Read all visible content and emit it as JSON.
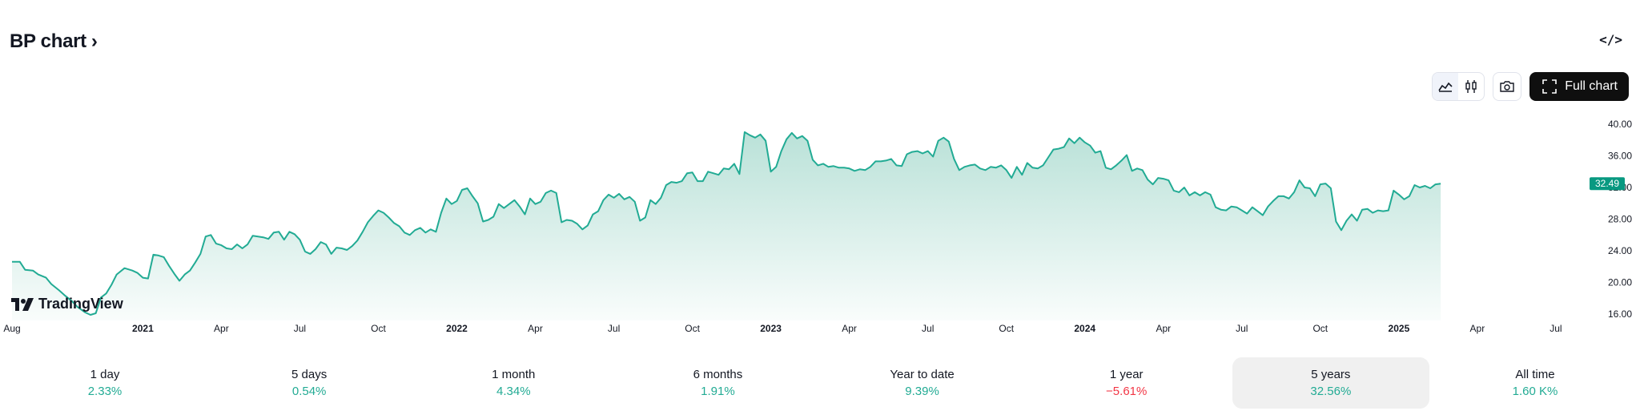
{
  "header": {
    "title": "BP chart",
    "chevron": "›",
    "embed_icon": "code-icon"
  },
  "toolbar": {
    "area_icon": "area-chart-icon",
    "candle_icon": "candlestick-icon",
    "camera_icon": "camera-icon",
    "full_chart_label": "Full chart",
    "full_chart_icon": "fullscreen-icon"
  },
  "logo": {
    "text": "TradingView"
  },
  "colors": {
    "line": "#22ab94",
    "fill_top": "#b6e0d6",
    "last_price_bg": "#089981",
    "axis_text": "#131722",
    "negative": "#f23645"
  },
  "chart_data": {
    "type": "area",
    "x_axis_labels": [
      {
        "t": 0,
        "label": "Aug",
        "bold": false
      },
      {
        "t": 5,
        "label": "2021",
        "bold": true
      },
      {
        "t": 8,
        "label": "Apr",
        "bold": false
      },
      {
        "t": 11,
        "label": "Jul",
        "bold": false
      },
      {
        "t": 14,
        "label": "Oct",
        "bold": false
      },
      {
        "t": 17,
        "label": "2022",
        "bold": true
      },
      {
        "t": 20,
        "label": "Apr",
        "bold": false
      },
      {
        "t": 23,
        "label": "Jul",
        "bold": false
      },
      {
        "t": 26,
        "label": "Oct",
        "bold": false
      },
      {
        "t": 29,
        "label": "2023",
        "bold": true
      },
      {
        "t": 32,
        "label": "Apr",
        "bold": false
      },
      {
        "t": 35,
        "label": "Jul",
        "bold": false
      },
      {
        "t": 38,
        "label": "Oct",
        "bold": false
      },
      {
        "t": 41,
        "label": "2024",
        "bold": true
      },
      {
        "t": 44,
        "label": "Apr",
        "bold": false
      },
      {
        "t": 47,
        "label": "Jul",
        "bold": false
      },
      {
        "t": 50,
        "label": "Oct",
        "bold": false
      },
      {
        "t": 53,
        "label": "2025",
        "bold": true
      },
      {
        "t": 56,
        "label": "Apr",
        "bold": false
      },
      {
        "t": 59,
        "label": "Jul",
        "bold": false
      }
    ],
    "t_range": [
      0,
      60.9
    ],
    "y_ticks": [
      "40.00",
      "36.00",
      "32.00",
      "28.00",
      "24.00",
      "20.00",
      "16.00"
    ],
    "ylim": [
      16,
      40
    ],
    "last_price": "32.49",
    "points": [
      [
        0,
        22.6
      ],
      [
        0.3,
        22.6
      ],
      [
        0.5,
        21.6
      ],
      [
        0.8,
        21.5
      ],
      [
        1.0,
        21.0
      ],
      [
        1.3,
        20.6
      ],
      [
        1.5,
        19.8
      ],
      [
        1.8,
        19.0
      ],
      [
        2.0,
        18.4
      ],
      [
        2.3,
        17.6
      ],
      [
        2.5,
        16.9
      ],
      [
        2.8,
        16.2
      ],
      [
        3.0,
        15.9
      ],
      [
        3.2,
        16.1
      ],
      [
        3.4,
        18.1
      ],
      [
        3.6,
        18.6
      ],
      [
        3.8,
        19.7
      ],
      [
        4.0,
        21.0
      ],
      [
        4.3,
        21.8
      ],
      [
        4.6,
        21.5
      ],
      [
        4.8,
        21.2
      ],
      [
        5.0,
        20.6
      ],
      [
        5.2,
        20.5
      ],
      [
        5.4,
        23.5
      ],
      [
        5.6,
        23.4
      ],
      [
        5.8,
        23.2
      ],
      [
        6.0,
        22.1
      ],
      [
        6.2,
        21.1
      ],
      [
        6.4,
        20.2
      ],
      [
        6.6,
        21.0
      ],
      [
        6.8,
        21.5
      ],
      [
        7.0,
        22.5
      ],
      [
        7.2,
        23.6
      ],
      [
        7.4,
        25.8
      ],
      [
        7.6,
        26.0
      ],
      [
        7.8,
        24.9
      ],
      [
        8.0,
        24.7
      ],
      [
        8.2,
        24.3
      ],
      [
        8.4,
        24.2
      ],
      [
        8.6,
        24.8
      ],
      [
        8.8,
        24.3
      ],
      [
        9.0,
        24.8
      ],
      [
        9.2,
        25.9
      ],
      [
        9.4,
        25.8
      ],
      [
        9.6,
        25.7
      ],
      [
        9.8,
        25.5
      ],
      [
        10.0,
        26.3
      ],
      [
        10.2,
        26.4
      ],
      [
        10.4,
        25.4
      ],
      [
        10.6,
        26.4
      ],
      [
        10.8,
        26.1
      ],
      [
        11.0,
        25.4
      ],
      [
        11.2,
        23.9
      ],
      [
        11.4,
        23.6
      ],
      [
        11.6,
        24.2
      ],
      [
        11.8,
        25.1
      ],
      [
        12.0,
        24.8
      ],
      [
        12.2,
        23.6
      ],
      [
        12.4,
        24.4
      ],
      [
        12.6,
        24.3
      ],
      [
        12.8,
        24.1
      ],
      [
        13.0,
        24.6
      ],
      [
        13.2,
        25.3
      ],
      [
        13.4,
        26.4
      ],
      [
        13.6,
        27.6
      ],
      [
        13.8,
        28.4
      ],
      [
        14.0,
        29.1
      ],
      [
        14.2,
        28.8
      ],
      [
        14.4,
        28.2
      ],
      [
        14.6,
        27.5
      ],
      [
        14.8,
        27.1
      ],
      [
        15.0,
        26.3
      ],
      [
        15.2,
        26.0
      ],
      [
        15.4,
        26.6
      ],
      [
        15.6,
        26.9
      ],
      [
        15.8,
        26.3
      ],
      [
        16.0,
        26.7
      ],
      [
        16.2,
        26.4
      ],
      [
        16.4,
        28.8
      ],
      [
        16.6,
        30.6
      ],
      [
        16.8,
        29.9
      ],
      [
        17.0,
        30.3
      ],
      [
        17.2,
        31.7
      ],
      [
        17.4,
        31.9
      ],
      [
        17.6,
        30.9
      ],
      [
        17.8,
        30.0
      ],
      [
        18.0,
        27.7
      ],
      [
        18.2,
        27.9
      ],
      [
        18.4,
        28.3
      ],
      [
        18.6,
        29.9
      ],
      [
        18.8,
        29.4
      ],
      [
        19.0,
        29.9
      ],
      [
        19.2,
        30.4
      ],
      [
        19.4,
        29.6
      ],
      [
        19.6,
        28.6
      ],
      [
        19.8,
        30.6
      ],
      [
        20.0,
        29.9
      ],
      [
        20.2,
        30.2
      ],
      [
        20.4,
        31.3
      ],
      [
        20.6,
        31.6
      ],
      [
        20.8,
        31.3
      ],
      [
        21.0,
        27.6
      ],
      [
        21.2,
        27.9
      ],
      [
        21.4,
        27.8
      ],
      [
        21.6,
        27.4
      ],
      [
        21.8,
        26.7
      ],
      [
        22.0,
        27.2
      ],
      [
        22.2,
        28.6
      ],
      [
        22.4,
        29.0
      ],
      [
        22.6,
        30.4
      ],
      [
        22.8,
        31.1
      ],
      [
        23.0,
        30.7
      ],
      [
        23.2,
        31.2
      ],
      [
        23.4,
        30.5
      ],
      [
        23.6,
        30.8
      ],
      [
        23.8,
        30.2
      ],
      [
        24.0,
        27.8
      ],
      [
        24.2,
        28.2
      ],
      [
        24.4,
        30.4
      ],
      [
        24.6,
        29.9
      ],
      [
        24.8,
        30.7
      ],
      [
        25.0,
        32.3
      ],
      [
        25.2,
        32.7
      ],
      [
        25.4,
        32.6
      ],
      [
        25.6,
        32.8
      ],
      [
        25.8,
        33.8
      ],
      [
        26.0,
        33.9
      ],
      [
        26.2,
        32.8
      ],
      [
        26.4,
        32.8
      ],
      [
        26.6,
        34.0
      ],
      [
        26.8,
        33.8
      ],
      [
        27.0,
        33.6
      ],
      [
        27.2,
        34.4
      ],
      [
        27.4,
        34.3
      ],
      [
        27.6,
        35.0
      ],
      [
        27.8,
        33.7
      ],
      [
        28.0,
        39.0
      ],
      [
        28.2,
        38.6
      ],
      [
        28.4,
        38.3
      ],
      [
        28.6,
        38.7
      ],
      [
        28.8,
        37.9
      ],
      [
        29.0,
        34.0
      ],
      [
        29.2,
        34.6
      ],
      [
        29.4,
        36.6
      ],
      [
        29.6,
        38.1
      ],
      [
        29.8,
        38.9
      ],
      [
        30.0,
        38.2
      ],
      [
        30.2,
        38.5
      ],
      [
        30.4,
        37.9
      ],
      [
        30.6,
        35.5
      ],
      [
        30.8,
        34.8
      ],
      [
        31.0,
        35.0
      ],
      [
        31.2,
        34.6
      ],
      [
        31.4,
        34.7
      ],
      [
        31.6,
        34.5
      ],
      [
        31.8,
        34.5
      ],
      [
        32.0,
        34.4
      ],
      [
        32.2,
        34.1
      ],
      [
        32.4,
        34.3
      ],
      [
        32.6,
        34.2
      ],
      [
        32.8,
        34.6
      ],
      [
        33.0,
        35.3
      ],
      [
        33.2,
        35.3
      ],
      [
        33.4,
        35.4
      ],
      [
        33.6,
        35.6
      ],
      [
        33.8,
        34.8
      ],
      [
        34.0,
        34.7
      ],
      [
        34.2,
        36.2
      ],
      [
        34.4,
        36.5
      ],
      [
        34.6,
        36.6
      ],
      [
        34.8,
        36.3
      ],
      [
        35.0,
        36.6
      ],
      [
        35.2,
        35.9
      ],
      [
        35.4,
        37.9
      ],
      [
        35.6,
        38.3
      ],
      [
        35.8,
        37.8
      ],
      [
        36.0,
        35.6
      ],
      [
        36.2,
        34.2
      ],
      [
        36.4,
        34.6
      ],
      [
        36.6,
        34.8
      ],
      [
        36.8,
        34.9
      ],
      [
        37.0,
        34.4
      ],
      [
        37.2,
        34.2
      ],
      [
        37.4,
        34.6
      ],
      [
        37.6,
        34.5
      ],
      [
        37.8,
        34.8
      ],
      [
        38.0,
        34.2
      ],
      [
        38.2,
        33.2
      ],
      [
        38.4,
        34.6
      ],
      [
        38.6,
        33.6
      ],
      [
        38.8,
        35.1
      ],
      [
        39.0,
        34.5
      ],
      [
        39.2,
        34.4
      ],
      [
        39.4,
        34.8
      ],
      [
        39.6,
        35.8
      ],
      [
        39.8,
        36.8
      ],
      [
        40.0,
        36.9
      ],
      [
        40.2,
        37.1
      ],
      [
        40.4,
        38.2
      ],
      [
        40.6,
        37.6
      ],
      [
        40.8,
        38.3
      ],
      [
        41.0,
        37.7
      ],
      [
        41.2,
        37.3
      ],
      [
        41.4,
        36.4
      ],
      [
        41.6,
        36.6
      ],
      [
        41.8,
        34.5
      ],
      [
        42.0,
        34.3
      ],
      [
        42.2,
        34.8
      ],
      [
        42.4,
        35.4
      ],
      [
        42.6,
        36.1
      ],
      [
        42.8,
        34.1
      ],
      [
        43.0,
        34.4
      ],
      [
        43.2,
        34.2
      ],
      [
        43.4,
        33.0
      ],
      [
        43.6,
        32.4
      ],
      [
        43.8,
        33.2
      ],
      [
        44.0,
        33.1
      ],
      [
        44.2,
        32.9
      ],
      [
        44.4,
        31.6
      ],
      [
        44.6,
        31.4
      ],
      [
        44.8,
        32.0
      ],
      [
        45.0,
        31.0
      ],
      [
        45.2,
        31.4
      ],
      [
        45.4,
        31.0
      ],
      [
        45.6,
        31.4
      ],
      [
        45.8,
        31.1
      ],
      [
        46.0,
        29.5
      ],
      [
        46.2,
        29.2
      ],
      [
        46.4,
        29.1
      ],
      [
        46.6,
        29.6
      ],
      [
        46.8,
        29.5
      ],
      [
        47.0,
        29.1
      ],
      [
        47.2,
        28.7
      ],
      [
        47.4,
        29.5
      ],
      [
        47.6,
        29.0
      ],
      [
        47.8,
        28.5
      ],
      [
        48.0,
        29.6
      ],
      [
        48.2,
        30.3
      ],
      [
        48.4,
        30.9
      ],
      [
        48.6,
        30.9
      ],
      [
        48.8,
        30.6
      ],
      [
        49.0,
        31.4
      ],
      [
        49.2,
        32.9
      ],
      [
        49.4,
        32.0
      ],
      [
        49.6,
        31.9
      ],
      [
        49.8,
        30.9
      ],
      [
        50.0,
        32.4
      ],
      [
        50.2,
        32.5
      ],
      [
        50.4,
        31.9
      ],
      [
        50.6,
        27.7
      ],
      [
        50.8,
        26.6
      ],
      [
        51.0,
        27.8
      ],
      [
        51.2,
        28.6
      ],
      [
        51.4,
        27.8
      ],
      [
        51.6,
        29.2
      ],
      [
        51.8,
        29.3
      ],
      [
        52.0,
        28.8
      ],
      [
        52.2,
        29.1
      ],
      [
        52.4,
        29.0
      ],
      [
        52.6,
        29.1
      ],
      [
        52.8,
        31.6
      ],
      [
        53.0,
        31.1
      ],
      [
        53.2,
        30.5
      ],
      [
        53.4,
        30.9
      ],
      [
        53.6,
        32.3
      ],
      [
        53.8,
        32.0
      ],
      [
        54.0,
        32.2
      ],
      [
        54.2,
        31.9
      ],
      [
        54.4,
        32.4
      ],
      [
        54.6,
        32.49
      ]
    ]
  },
  "periods": [
    {
      "label": "1 day",
      "value": "2.33%",
      "sign": "pos",
      "selected": false
    },
    {
      "label": "5 days",
      "value": "0.54%",
      "sign": "pos",
      "selected": false
    },
    {
      "label": "1 month",
      "value": "4.34%",
      "sign": "pos",
      "selected": false
    },
    {
      "label": "6 months",
      "value": "1.91%",
      "sign": "pos",
      "selected": false
    },
    {
      "label": "Year to date",
      "value": "9.39%",
      "sign": "pos",
      "selected": false
    },
    {
      "label": "1 year",
      "value": "−5.61%",
      "sign": "neg",
      "selected": false
    },
    {
      "label": "5 years",
      "value": "32.56%",
      "sign": "pos",
      "selected": true
    },
    {
      "label": "All time",
      "value": "1.60 K%",
      "sign": "pos",
      "selected": false
    }
  ]
}
